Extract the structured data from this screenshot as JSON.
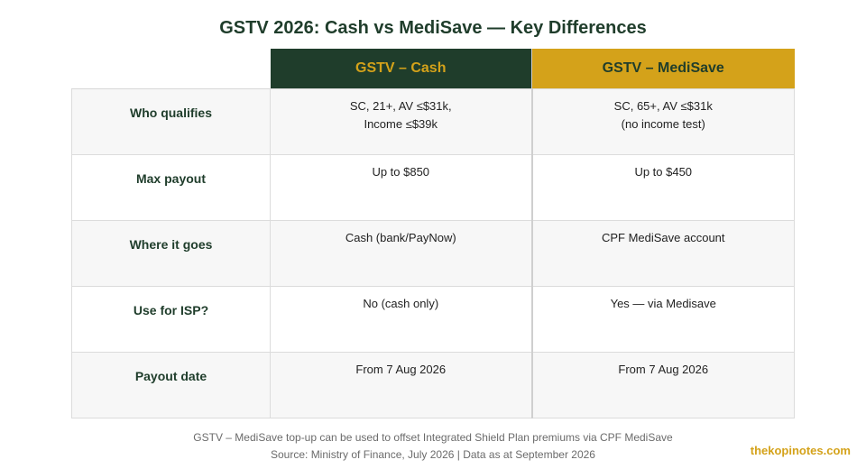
{
  "title": "GSTV 2026: Cash vs MediSave — Key Differences",
  "header": {
    "col1": "GSTV – Cash",
    "col2": "GSTV – MediSave"
  },
  "rows": [
    {
      "label": "Who qualifies",
      "cash": [
        "SC, 21+, AV ≤$31k,",
        "Income ≤$39k"
      ],
      "medisave": [
        "SC, 65+, AV ≤$31k",
        "(no income test)"
      ]
    },
    {
      "label": "Max payout",
      "cash": [
        "Up to $850"
      ],
      "medisave": [
        "Up to $450"
      ]
    },
    {
      "label": "Where it goes",
      "cash": [
        "Cash (bank/PayNow)"
      ],
      "medisave": [
        "CPF MediSave account"
      ]
    },
    {
      "label": "Use for ISP?",
      "cash": [
        "No (cash only)"
      ],
      "medisave": [
        "Yes — via Medisave"
      ]
    },
    {
      "label": "Payout date",
      "cash": [
        "From 7 Aug 2026"
      ],
      "medisave": [
        "From 7 Aug 2026"
      ]
    }
  ],
  "footer": {
    "note": "GSTV – MediSave top-up can be used to offset Integrated Shield Plan premiums via CPF MediSave",
    "source": "Source: Ministry of Finance, July 2026 | Data as at September 2026"
  },
  "brand": "thekopinotes.com",
  "colors": {
    "green": "#1f3d2b",
    "gold": "#d4a21a"
  }
}
